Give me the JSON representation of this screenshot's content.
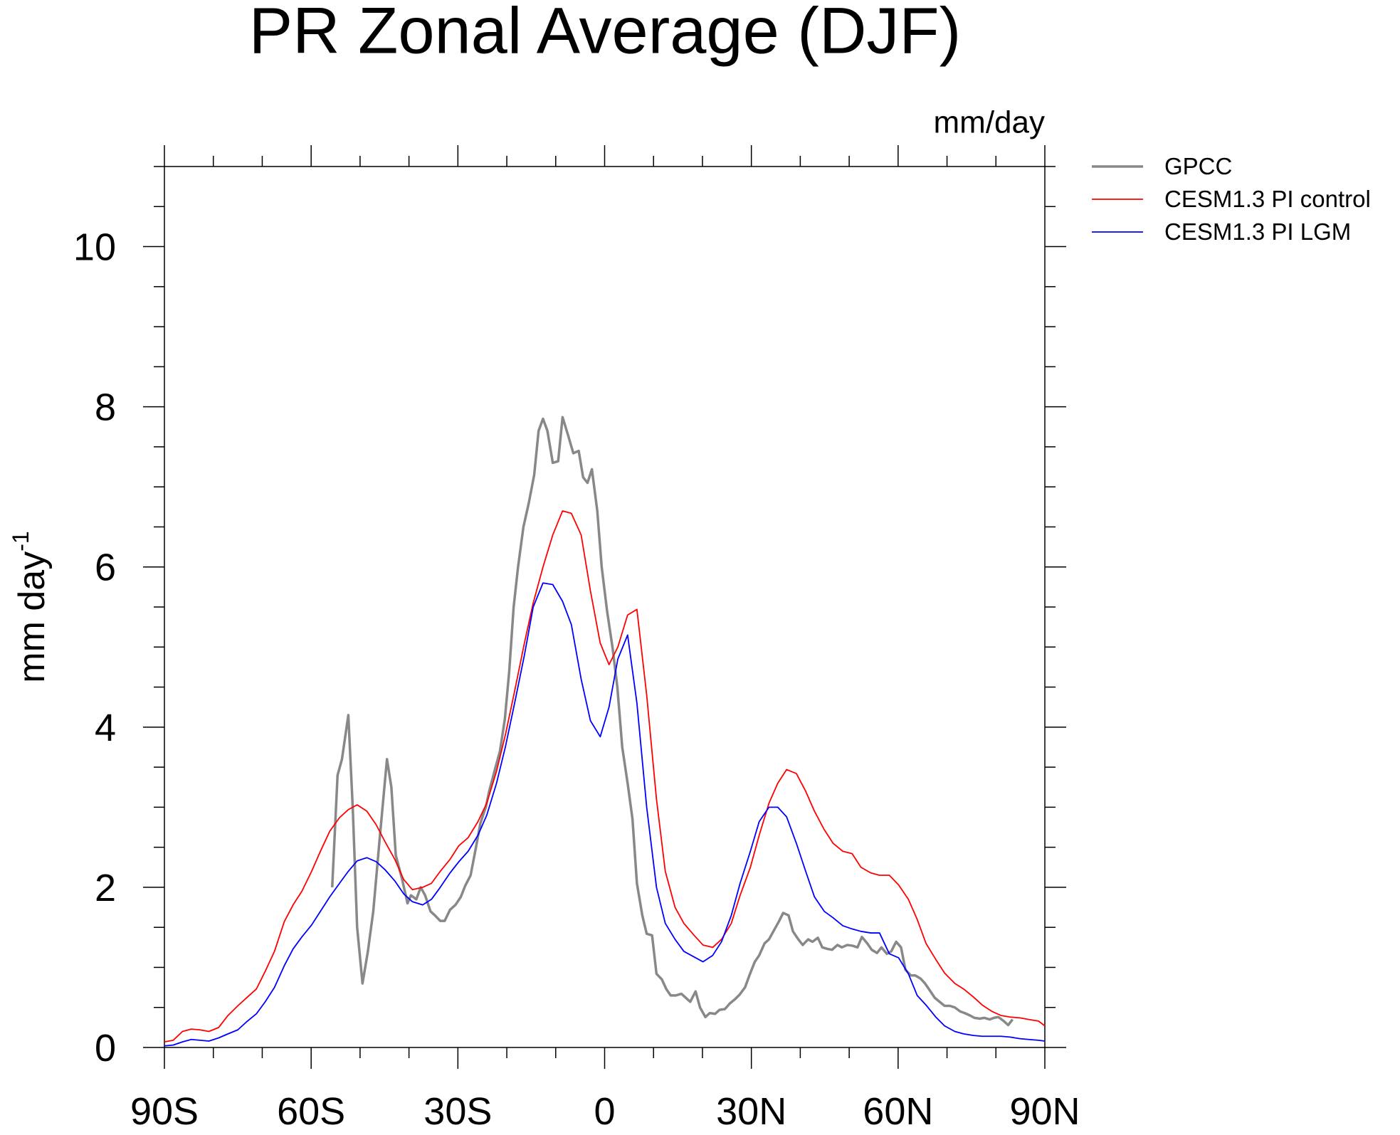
{
  "chart_data": {
    "type": "line",
    "title": "PR Zonal Average (DJF)",
    "units": "mm/day",
    "ylabel": "mm day",
    "ylabel_sup": "-1",
    "xlim": [
      -90,
      90
    ],
    "ylim": [
      0,
      11
    ],
    "xticks": [
      {
        "value": -90,
        "label": "90S"
      },
      {
        "value": -60,
        "label": "60S"
      },
      {
        "value": -30,
        "label": "30S"
      },
      0,
      {
        "value": 30,
        "label": "30N"
      },
      {
        "value": 60,
        "label": "60N"
      },
      {
        "value": 90,
        "label": "90N"
      }
    ],
    "yticks": [
      0,
      2,
      4,
      6,
      8,
      10
    ],
    "legend": "outside-right",
    "series": [
      {
        "name": "GPCC",
        "color": "#888888",
        "x": [
          -55.7,
          -54.6,
          -53.7,
          -52.4,
          -51.5,
          -50.6,
          -49.5,
          -48.4,
          -47.3,
          -46,
          -44.5,
          -43.6,
          -42.7,
          -41.4,
          -40.3,
          -39.6,
          -38.5,
          -37.6,
          -36.7,
          -35.6,
          -34.7,
          -33.6,
          -32.7,
          -31.6,
          -30.5,
          -29.4,
          -28.5,
          -27.4,
          -26.3,
          -25.4,
          -24.3,
          -23.6,
          -22.3,
          -21.4,
          -20.4,
          -19.5,
          -18.6,
          -17.7,
          -16.6,
          -15.5,
          -14.4,
          -13.5,
          -12.6,
          -11.7,
          -10.6,
          -9.5,
          -8.6,
          -7.5,
          -6.4,
          -5.3,
          -4.4,
          -3.5,
          -2.6,
          -1.5,
          -0.6,
          0.5,
          1.6,
          2.6,
          3.6,
          4.7,
          5.7,
          6.6,
          7.7,
          8.6,
          9.7,
          10.6,
          11.7,
          12.6,
          13.5,
          14.6,
          15.7,
          16.6,
          17.5,
          18.6,
          19.5,
          20.6,
          21.5,
          22.6,
          23.5,
          24.6,
          25.6,
          26.6,
          27.6,
          28.7,
          29.6,
          30.7,
          31.6,
          32.7,
          33.6,
          34.5,
          35.6,
          36.5,
          37.6,
          38.5,
          39.6,
          40.5,
          41.6,
          42.5,
          43.6,
          44.5,
          45.6,
          46.5,
          47.6,
          48.5,
          49.6,
          50.7,
          51.7,
          52.6,
          53.7,
          54.6,
          55.7,
          56.6,
          57.7,
          58.6,
          59.6,
          60.6,
          61.5,
          62.6,
          63.5,
          64.6,
          65.5,
          66.4,
          67.5,
          68.5,
          69.5,
          70.6,
          71.6,
          72.7,
          73.6,
          74.7,
          75.6,
          76.7,
          77.6,
          78.7,
          79.6,
          80.5,
          81.6,
          82.5,
          83.4
        ],
        "values": [
          2.0,
          3.4,
          3.6,
          4.15,
          3.0,
          1.5,
          0.8,
          1.2,
          1.7,
          2.6,
          3.6,
          3.25,
          2.4,
          2.1,
          1.8,
          1.9,
          1.85,
          2.0,
          1.9,
          1.7,
          1.65,
          1.58,
          1.58,
          1.72,
          1.78,
          1.88,
          2.02,
          2.15,
          2.5,
          2.8,
          3.0,
          3.2,
          3.5,
          3.7,
          4.1,
          4.7,
          5.5,
          6.0,
          6.5,
          6.8,
          7.15,
          7.7,
          7.85,
          7.7,
          7.3,
          7.32,
          7.87,
          7.65,
          7.42,
          7.45,
          7.12,
          7.05,
          7.22,
          6.7,
          6.0,
          5.45,
          5.0,
          4.5,
          3.75,
          3.3,
          2.85,
          2.05,
          1.65,
          1.42,
          1.4,
          0.92,
          0.85,
          0.73,
          0.65,
          0.65,
          0.67,
          0.62,
          0.57,
          0.7,
          0.5,
          0.38,
          0.43,
          0.42,
          0.47,
          0.48,
          0.55,
          0.6,
          0.66,
          0.75,
          0.9,
          1.07,
          1.15,
          1.3,
          1.35,
          1.45,
          1.57,
          1.68,
          1.65,
          1.45,
          1.35,
          1.28,
          1.35,
          1.32,
          1.37,
          1.25,
          1.23,
          1.22,
          1.28,
          1.25,
          1.28,
          1.27,
          1.25,
          1.38,
          1.3,
          1.22,
          1.18,
          1.25,
          1.17,
          1.2,
          1.32,
          1.25,
          0.97,
          0.9,
          0.9,
          0.86,
          0.8,
          0.72,
          0.62,
          0.57,
          0.52,
          0.52,
          0.5,
          0.45,
          0.43,
          0.4,
          0.37,
          0.36,
          0.37,
          0.35,
          0.37,
          0.38,
          0.33,
          0.28,
          0.35
        ]
      },
      {
        "name": "CESM1.3 PI control",
        "color": "#ff0000",
        "x": [
          -90,
          -88.2,
          -86.3,
          -84.5,
          -82.7,
          -80.9,
          -78.9,
          -77,
          -75,
          -73.2,
          -71.2,
          -69.4,
          -67.5,
          -65.5,
          -63.7,
          -61.9,
          -59.9,
          -58.1,
          -56.2,
          -54.2,
          -52.4,
          -50.6,
          -48.6,
          -46.7,
          -44.9,
          -42.9,
          -41.1,
          -39.3,
          -37.2,
          -35.4,
          -33.6,
          -31.6,
          -29.8,
          -27.9,
          -25.9,
          -24.1,
          -22.1,
          -20.3,
          -18.4,
          -16.4,
          -14.6,
          -12.6,
          -10.6,
          -8.6,
          -6.8,
          -4.8,
          -2.9,
          -0.9,
          0.9,
          2.7,
          4.7,
          6.6,
          8.6,
          10.6,
          12.4,
          14.4,
          16.2,
          18.3,
          20.1,
          22.1,
          23.9,
          25.9,
          27.7,
          29.8,
          31.6,
          33.6,
          35.4,
          37.2,
          39.2,
          41.1,
          42.9,
          44.9,
          46.7,
          48.7,
          50.6,
          52.4,
          54.4,
          56.2,
          58.2,
          60.1,
          62.1,
          63.9,
          65.7,
          67.7,
          69.5,
          71.6,
          73.4,
          75.4,
          77.2,
          79.2,
          81,
          82.9,
          84.9,
          86.7,
          88.7,
          90
        ],
        "values": [
          0.07,
          0.09,
          0.2,
          0.23,
          0.22,
          0.2,
          0.25,
          0.4,
          0.52,
          0.62,
          0.73,
          0.95,
          1.2,
          1.57,
          1.78,
          1.95,
          2.2,
          2.45,
          2.7,
          2.87,
          2.97,
          3.03,
          2.95,
          2.78,
          2.57,
          2.35,
          2.1,
          1.97,
          2.0,
          2.05,
          2.2,
          2.35,
          2.52,
          2.62,
          2.82,
          3.05,
          3.45,
          3.9,
          4.45,
          5.05,
          5.55,
          6.0,
          6.4,
          6.7,
          6.67,
          6.4,
          5.7,
          5.05,
          4.78,
          5.0,
          5.4,
          5.47,
          4.4,
          3.1,
          2.2,
          1.75,
          1.55,
          1.4,
          1.28,
          1.25,
          1.35,
          1.55,
          1.9,
          2.25,
          2.65,
          3.05,
          3.3,
          3.47,
          3.42,
          3.2,
          2.95,
          2.72,
          2.55,
          2.45,
          2.42,
          2.25,
          2.18,
          2.15,
          2.15,
          2.03,
          1.85,
          1.6,
          1.3,
          1.1,
          0.93,
          0.8,
          0.73,
          0.63,
          0.53,
          0.45,
          0.4,
          0.38,
          0.37,
          0.35,
          0.33,
          0.27
        ]
      },
      {
        "name": "CESM1.3 PI LGM",
        "color": "#0000ff",
        "x": [
          -90,
          -88.2,
          -86.3,
          -84.5,
          -82.7,
          -80.9,
          -78.9,
          -77,
          -75,
          -73.2,
          -71.2,
          -69.4,
          -67.5,
          -65.5,
          -63.7,
          -61.9,
          -59.9,
          -58.1,
          -56.2,
          -54.2,
          -52.4,
          -50.6,
          -48.6,
          -46.7,
          -44.9,
          -42.9,
          -41.1,
          -39.3,
          -37.2,
          -35.4,
          -33.6,
          -31.6,
          -29.8,
          -27.9,
          -25.9,
          -24.1,
          -22.1,
          -20.3,
          -18.4,
          -16.4,
          -14.6,
          -12.6,
          -10.6,
          -8.6,
          -6.8,
          -4.8,
          -2.9,
          -0.9,
          0.9,
          2.7,
          4.7,
          6.6,
          8.6,
          10.6,
          12.4,
          14.4,
          16.2,
          18.3,
          20.1,
          22.1,
          23.9,
          25.9,
          27.7,
          29.8,
          31.6,
          33.6,
          35.4,
          37.2,
          39.2,
          41.1,
          42.9,
          44.9,
          46.7,
          48.7,
          50.6,
          52.4,
          54.4,
          56.2,
          58.2,
          60.1,
          62.1,
          63.9,
          65.7,
          67.7,
          69.5,
          71.6,
          73.4,
          75.4,
          77.2,
          79.2,
          81,
          82.9,
          84.9,
          86.7,
          88.7,
          90
        ],
        "values": [
          0.02,
          0.03,
          0.07,
          0.1,
          0.09,
          0.08,
          0.12,
          0.17,
          0.22,
          0.32,
          0.42,
          0.57,
          0.75,
          1.02,
          1.23,
          1.38,
          1.53,
          1.7,
          1.88,
          2.05,
          2.2,
          2.33,
          2.37,
          2.32,
          2.22,
          2.08,
          1.92,
          1.82,
          1.78,
          1.85,
          2.0,
          2.18,
          2.32,
          2.45,
          2.65,
          2.9,
          3.3,
          3.75,
          4.3,
          4.9,
          5.5,
          5.8,
          5.78,
          5.57,
          5.28,
          4.6,
          4.08,
          3.88,
          4.25,
          4.85,
          5.15,
          4.3,
          3.0,
          2.0,
          1.55,
          1.35,
          1.2,
          1.13,
          1.07,
          1.15,
          1.32,
          1.65,
          2.05,
          2.45,
          2.82,
          3.0,
          3.0,
          2.88,
          2.55,
          2.2,
          1.88,
          1.7,
          1.62,
          1.52,
          1.48,
          1.45,
          1.43,
          1.43,
          1.17,
          1.12,
          0.92,
          0.65,
          0.53,
          0.38,
          0.27,
          0.2,
          0.17,
          0.15,
          0.14,
          0.14,
          0.14,
          0.13,
          0.11,
          0.1,
          0.09,
          0.08
        ]
      }
    ]
  }
}
